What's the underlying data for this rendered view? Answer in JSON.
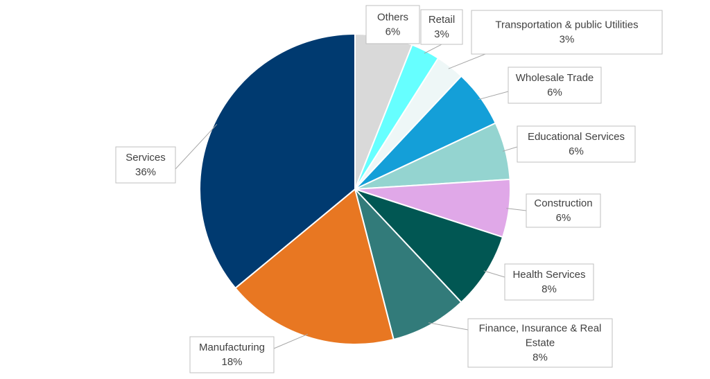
{
  "chart_data": {
    "type": "pie",
    "start_angle_deg": 0,
    "direction": "clockwise",
    "legend": "none",
    "slices": [
      {
        "name": "Others",
        "value": 6,
        "label": "6%",
        "color": "#d9d9d9"
      },
      {
        "name": "Retail",
        "value": 3,
        "label": "3%",
        "color": "#66ffff"
      },
      {
        "name": "Transportation & public Utilities",
        "value": 3,
        "label": "3%",
        "color": "#eef7f7"
      },
      {
        "name": "Wholesale Trade",
        "value": 6,
        "label": "6%",
        "color": "#149fd8"
      },
      {
        "name": "Educational Services",
        "value": 6,
        "label": "6%",
        "color": "#94d4d0"
      },
      {
        "name": "Construction",
        "value": 6,
        "label": "6%",
        "color": "#e0a8e8"
      },
      {
        "name": "Health Services",
        "value": 8,
        "label": "8%",
        "color": "#015753"
      },
      {
        "name": "Finance, Insurance & Real Estate",
        "value": 8,
        "label": "8%",
        "color": "#327b7a"
      },
      {
        "name": "Manufacturing",
        "value": 18,
        "label": "18%",
        "color": "#e87722"
      },
      {
        "name": "Services",
        "value": 36,
        "label": "36%",
        "color": "#003a70"
      }
    ]
  }
}
